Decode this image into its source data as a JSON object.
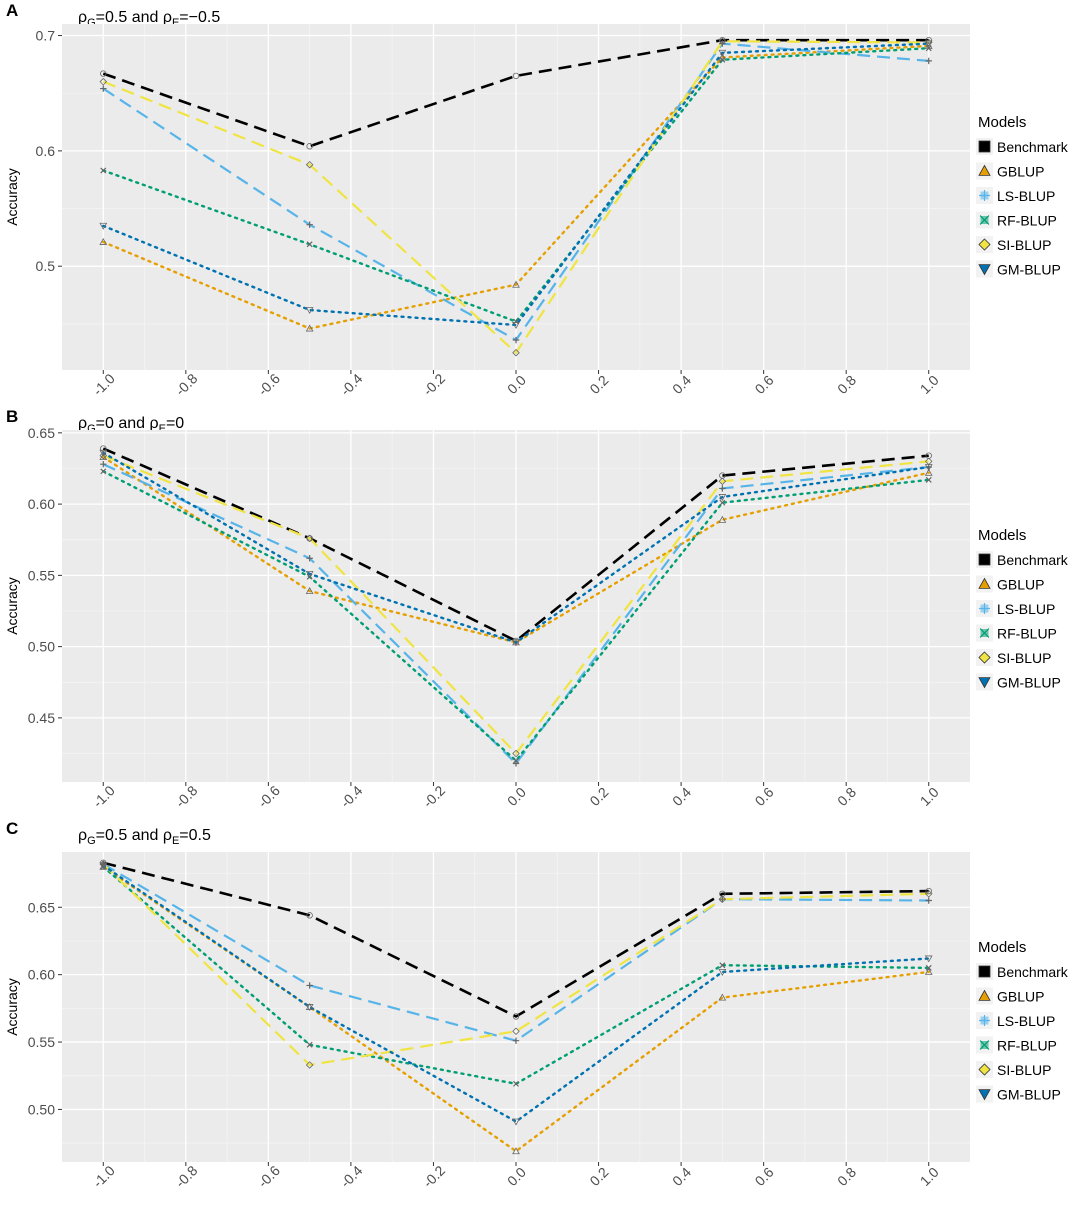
{
  "x_ticks": [
    "-1.0",
    "-0.8",
    "-0.6",
    "-0.4",
    "-0.2",
    "0.0",
    "0.2",
    "0.4",
    "0.6",
    "0.8",
    "1.0"
  ],
  "legend_title": "Models",
  "series_styles": [
    {
      "name": "Benchmark",
      "color": "#000000",
      "dash": "long",
      "fill": "#000000",
      "shape": "square"
    },
    {
      "name": "GBLUP",
      "color": "#E69F00",
      "dash": "dot",
      "fill": "#E69F00",
      "shape": "triangle"
    },
    {
      "name": "LS-BLUP",
      "color": "#56B4E9",
      "dash": "long",
      "fill": "#56B4E9",
      "shape": "plus"
    },
    {
      "name": "RF-BLUP",
      "color": "#009E73",
      "dash": "dot",
      "fill": "#009E73",
      "shape": "cross"
    },
    {
      "name": "SI-BLUP",
      "color": "#F0E442",
      "dash": "long",
      "fill": "#F0E442",
      "shape": "diamond"
    },
    {
      "name": "GM-BLUP",
      "color": "#0072B2",
      "dash": "dot",
      "fill": "#0072B2",
      "shape": "down-triangle"
    }
  ],
  "chart_data": [
    {
      "panel_label": "A",
      "type": "line",
      "title_parts": {
        "rho": "ρ",
        "sub1": "G",
        "mid": "=0.5 and ",
        "sub2": "E",
        "end": "=−0.5"
      },
      "xlabel": "",
      "ylabel": "Accuracy",
      "x": [
        -1.0,
        -0.5,
        0.0,
        0.5,
        1.0
      ],
      "xlim": [
        -1.1,
        1.1
      ],
      "ylim": [
        0.41,
        0.71
      ],
      "y_ticks": [
        0.5,
        0.6,
        0.7
      ],
      "y_tick_labels": [
        "0.5",
        "0.6",
        "0.7"
      ],
      "series": [
        {
          "name": "Benchmark",
          "values": [
            0.667,
            0.604,
            0.665,
            0.696,
            0.696
          ]
        },
        {
          "name": "GBLUP",
          "values": [
            0.521,
            0.446,
            0.484,
            0.681,
            0.691
          ]
        },
        {
          "name": "LS-BLUP",
          "values": [
            0.654,
            0.536,
            0.436,
            0.693,
            0.678
          ]
        },
        {
          "name": "RF-BLUP",
          "values": [
            0.583,
            0.519,
            0.452,
            0.679,
            0.689
          ]
        },
        {
          "name": "SI-BLUP",
          "values": [
            0.66,
            0.588,
            0.425,
            0.695,
            0.694
          ]
        },
        {
          "name": "GM-BLUP",
          "values": [
            0.535,
            0.462,
            0.449,
            0.685,
            0.693
          ]
        }
      ]
    },
    {
      "panel_label": "B",
      "type": "line",
      "title_parts": {
        "rho": "ρ",
        "sub1": "G",
        "mid": "=0 and ",
        "sub2": "E",
        "end": "=0"
      },
      "xlabel": "",
      "ylabel": "Accuracy",
      "x": [
        -1.0,
        -0.5,
        0.0,
        0.5,
        1.0
      ],
      "xlim": [
        -1.1,
        1.1
      ],
      "ylim": [
        0.405,
        0.652
      ],
      "y_ticks": [
        0.45,
        0.5,
        0.55,
        0.6,
        0.65
      ],
      "y_tick_labels": [
        "0.45",
        "0.50",
        "0.55",
        "0.60",
        "0.65"
      ],
      "series": [
        {
          "name": "Benchmark",
          "values": [
            0.639,
            0.576,
            0.504,
            0.62,
            0.634
          ]
        },
        {
          "name": "GBLUP",
          "values": [
            0.633,
            0.539,
            0.503,
            0.589,
            0.622
          ]
        },
        {
          "name": "LS-BLUP",
          "values": [
            0.628,
            0.562,
            0.418,
            0.611,
            0.626
          ]
        },
        {
          "name": "RF-BLUP",
          "values": [
            0.623,
            0.549,
            0.42,
            0.601,
            0.617
          ]
        },
        {
          "name": "SI-BLUP",
          "values": [
            0.634,
            0.576,
            0.425,
            0.616,
            0.63
          ]
        },
        {
          "name": "GM-BLUP",
          "values": [
            0.636,
            0.551,
            0.503,
            0.605,
            0.626
          ]
        }
      ]
    },
    {
      "panel_label": "C",
      "type": "line",
      "title_parts": {
        "rho": "ρ",
        "sub1": "G",
        "mid": "=0.5 and ",
        "sub2": "E",
        "end": "=0.5"
      },
      "xlabel": "",
      "ylabel": "Accuracy",
      "x": [
        -1.0,
        -0.5,
        0.0,
        0.5,
        1.0
      ],
      "xlim": [
        -1.1,
        1.1
      ],
      "ylim": [
        0.461,
        0.691
      ],
      "y_ticks": [
        0.5,
        0.55,
        0.6,
        0.65
      ],
      "y_tick_labels": [
        "0.50",
        "0.55",
        "0.60",
        "0.65"
      ],
      "series": [
        {
          "name": "Benchmark",
          "values": [
            0.683,
            0.644,
            0.569,
            0.66,
            0.662
          ]
        },
        {
          "name": "GBLUP",
          "values": [
            0.68,
            0.576,
            0.469,
            0.583,
            0.602
          ]
        },
        {
          "name": "LS-BLUP",
          "values": [
            0.682,
            0.592,
            0.551,
            0.656,
            0.655
          ]
        },
        {
          "name": "RF-BLUP",
          "values": [
            0.68,
            0.548,
            0.519,
            0.607,
            0.605
          ]
        },
        {
          "name": "SI-BLUP",
          "values": [
            0.682,
            0.533,
            0.558,
            0.656,
            0.66
          ]
        },
        {
          "name": "GM-BLUP",
          "values": [
            0.681,
            0.576,
            0.491,
            0.602,
            0.612
          ]
        }
      ]
    }
  ]
}
